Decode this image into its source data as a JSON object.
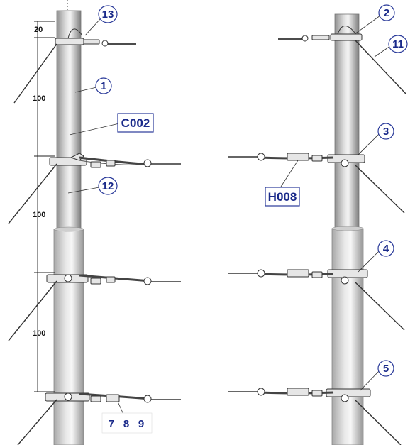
{
  "dimensions": {
    "top_offset": "20",
    "spacing_1": "100",
    "spacing_2": "100",
    "spacing_3": "100"
  },
  "callouts": {
    "c1": "1",
    "c2": "2",
    "c3": "3",
    "c4": "4",
    "c5": "5",
    "c11": "11",
    "c12": "12",
    "c13": "13",
    "c7": "7",
    "c8": "8",
    "c9": "9"
  },
  "labels": {
    "left_code": "C002",
    "right_code": "H008"
  },
  "colors": {
    "callout_text": "#1a2a8a",
    "callout_stroke": "#2a3a9a",
    "pole_light": "#f2f2f2",
    "pole_dark": "#9a9a9a"
  }
}
